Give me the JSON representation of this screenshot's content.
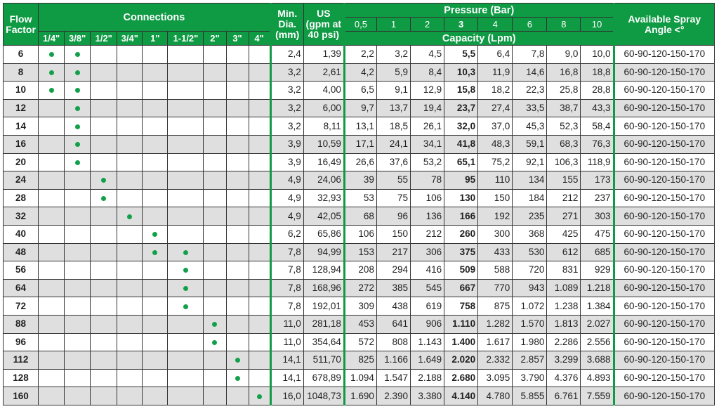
{
  "header": {
    "flow_factor": "Flow Factor",
    "connections": "Connections",
    "min_dia": "Min. Dia. (mm)",
    "us": "US (gpm at 40 psi)",
    "pressure": "Pressure (Bar)",
    "capacity": "Capacity (Lpm)",
    "spray_angle": "Available Spray Angle <°",
    "connection_sizes": [
      "1/4\"",
      "3/8\"",
      "1/2\"",
      "3/4\"",
      "1\"",
      "1-1/2\"",
      "2\"",
      "3\"",
      "4\""
    ],
    "pressures": [
      "0,5",
      "1",
      "2",
      "3",
      "4",
      "6",
      "8",
      "10"
    ]
  },
  "colors": {
    "header_bg": "#0f9a44",
    "dot": "#12a14a",
    "alt_row": "#dfdfdf"
  },
  "rows": [
    {
      "ff": "6",
      "conn": [
        1,
        1,
        0,
        0,
        0,
        0,
        0,
        0,
        0
      ],
      "dia": "2,4",
      "us": "1,39",
      "cap": [
        "2,2",
        "3,2",
        "4,5",
        "5,5",
        "6,4",
        "7,8",
        "9,0",
        "10,0"
      ],
      "angle": "60-90-120-150-170"
    },
    {
      "ff": "8",
      "conn": [
        1,
        1,
        0,
        0,
        0,
        0,
        0,
        0,
        0
      ],
      "dia": "3,2",
      "us": "2,61",
      "cap": [
        "4,2",
        "5,9",
        "8,4",
        "10,3",
        "11,9",
        "14,6",
        "16,8",
        "18,8"
      ],
      "angle": "60-90-120-150-170"
    },
    {
      "ff": "10",
      "conn": [
        1,
        1,
        0,
        0,
        0,
        0,
        0,
        0,
        0
      ],
      "dia": "3,2",
      "us": "4,00",
      "cap": [
        "6,5",
        "9,1",
        "12,9",
        "15,8",
        "18,2",
        "22,3",
        "25,8",
        "28,8"
      ],
      "angle": "60-90-120-150-170"
    },
    {
      "ff": "12",
      "conn": [
        0,
        1,
        0,
        0,
        0,
        0,
        0,
        0,
        0
      ],
      "dia": "3,2",
      "us": "6,00",
      "cap": [
        "9,7",
        "13,7",
        "19,4",
        "23,7",
        "27,4",
        "33,5",
        "38,7",
        "43,3"
      ],
      "angle": "60-90-120-150-170"
    },
    {
      "ff": "14",
      "conn": [
        0,
        1,
        0,
        0,
        0,
        0,
        0,
        0,
        0
      ],
      "dia": "3,2",
      "us": "8,11",
      "cap": [
        "13,1",
        "18,5",
        "26,1",
        "32,0",
        "37,0",
        "45,3",
        "52,3",
        "58,4"
      ],
      "angle": "60-90-120-150-170"
    },
    {
      "ff": "16",
      "conn": [
        0,
        1,
        0,
        0,
        0,
        0,
        0,
        0,
        0
      ],
      "dia": "3,9",
      "us": "10,59",
      "cap": [
        "17,1",
        "24,1",
        "34,1",
        "41,8",
        "48,3",
        "59,1",
        "68,3",
        "76,3"
      ],
      "angle": "60-90-120-150-170"
    },
    {
      "ff": "20",
      "conn": [
        0,
        1,
        0,
        0,
        0,
        0,
        0,
        0,
        0
      ],
      "dia": "3,9",
      "us": "16,49",
      "cap": [
        "26,6",
        "37,6",
        "53,2",
        "65,1",
        "75,2",
        "92,1",
        "106,3",
        "118,9"
      ],
      "angle": "60-90-120-150-170"
    },
    {
      "ff": "24",
      "conn": [
        0,
        0,
        1,
        0,
        0,
        0,
        0,
        0,
        0
      ],
      "dia": "4,9",
      "us": "24,06",
      "cap": [
        "39",
        "55",
        "78",
        "95",
        "110",
        "134",
        "155",
        "173"
      ],
      "angle": "60-90-120-150-170"
    },
    {
      "ff": "28",
      "conn": [
        0,
        0,
        1,
        0,
        0,
        0,
        0,
        0,
        0
      ],
      "dia": "4,9",
      "us": "32,93",
      "cap": [
        "53",
        "75",
        "106",
        "130",
        "150",
        "184",
        "212",
        "237"
      ],
      "angle": "60-90-120-150-170"
    },
    {
      "ff": "32",
      "conn": [
        0,
        0,
        0,
        1,
        0,
        0,
        0,
        0,
        0
      ],
      "dia": "4,9",
      "us": "42,05",
      "cap": [
        "68",
        "96",
        "136",
        "166",
        "192",
        "235",
        "271",
        "303"
      ],
      "angle": "60-90-120-150-170"
    },
    {
      "ff": "40",
      "conn": [
        0,
        0,
        0,
        0,
        1,
        0,
        0,
        0,
        0
      ],
      "dia": "6,2",
      "us": "65,86",
      "cap": [
        "106",
        "150",
        "212",
        "260",
        "300",
        "368",
        "425",
        "475"
      ],
      "angle": "60-90-120-150-170"
    },
    {
      "ff": "48",
      "conn": [
        0,
        0,
        0,
        0,
        1,
        1,
        0,
        0,
        0
      ],
      "dia": "7,8",
      "us": "94,99",
      "cap": [
        "153",
        "217",
        "306",
        "375",
        "433",
        "530",
        "612",
        "685"
      ],
      "angle": "60-90-120-150-170"
    },
    {
      "ff": "56",
      "conn": [
        0,
        0,
        0,
        0,
        0,
        1,
        0,
        0,
        0
      ],
      "dia": "7,8",
      "us": "128,94",
      "cap": [
        "208",
        "294",
        "416",
        "509",
        "588",
        "720",
        "831",
        "929"
      ],
      "angle": "60-90-120-150-170"
    },
    {
      "ff": "64",
      "conn": [
        0,
        0,
        0,
        0,
        0,
        1,
        0,
        0,
        0
      ],
      "dia": "7,8",
      "us": "168,96",
      "cap": [
        "272",
        "385",
        "545",
        "667",
        "770",
        "943",
        "1.089",
        "1.218"
      ],
      "angle": "60-90-120-150-170"
    },
    {
      "ff": "72",
      "conn": [
        0,
        0,
        0,
        0,
        0,
        1,
        0,
        0,
        0
      ],
      "dia": "7,8",
      "us": "192,01",
      "cap": [
        "309",
        "438",
        "619",
        "758",
        "875",
        "1.072",
        "1.238",
        "1.384"
      ],
      "angle": "60-90-120-150-170"
    },
    {
      "ff": "88",
      "conn": [
        0,
        0,
        0,
        0,
        0,
        0,
        1,
        0,
        0
      ],
      "dia": "11,0",
      "us": "281,18",
      "cap": [
        "453",
        "641",
        "906",
        "1.110",
        "1.282",
        "1.570",
        "1.813",
        "2.027"
      ],
      "angle": "60-90-120-150-170"
    },
    {
      "ff": "96",
      "conn": [
        0,
        0,
        0,
        0,
        0,
        0,
        1,
        0,
        0
      ],
      "dia": "11,0",
      "us": "354,64",
      "cap": [
        "572",
        "808",
        "1.143",
        "1.400",
        "1.617",
        "1.980",
        "2.286",
        "2.556"
      ],
      "angle": "60-90-120-150-170"
    },
    {
      "ff": "112",
      "conn": [
        0,
        0,
        0,
        0,
        0,
        0,
        0,
        1,
        0
      ],
      "dia": "14,1",
      "us": "511,70",
      "cap": [
        "825",
        "1.166",
        "1.649",
        "2.020",
        "2.332",
        "2.857",
        "3.299",
        "3.688"
      ],
      "angle": "60-90-120-150-170"
    },
    {
      "ff": "128",
      "conn": [
        0,
        0,
        0,
        0,
        0,
        0,
        0,
        1,
        0
      ],
      "dia": "14,1",
      "us": "678,89",
      "cap": [
        "1.094",
        "1.547",
        "2.188",
        "2.680",
        "3.095",
        "3.790",
        "4.376",
        "4.893"
      ],
      "angle": "60-90-120-150-170"
    },
    {
      "ff": "160",
      "conn": [
        0,
        0,
        0,
        0,
        0,
        0,
        0,
        0,
        1
      ],
      "dia": "16,0",
      "us": "1048,73",
      "cap": [
        "1.690",
        "2.390",
        "3.380",
        "4.140",
        "4.780",
        "5.855",
        "6.761",
        "7.559"
      ],
      "angle": "60-90-120-150-170"
    }
  ]
}
